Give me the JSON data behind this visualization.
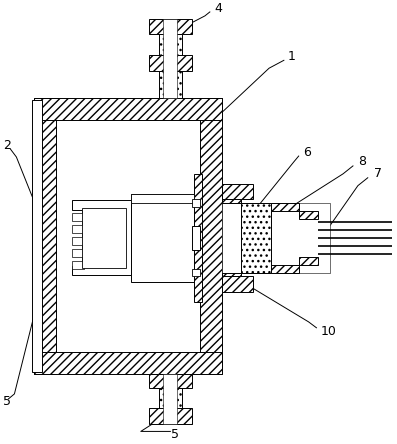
{
  "bg_color": "#ffffff",
  "figsize": [
    3.97,
    4.44
  ],
  "dpi": 100,
  "labels": [
    "1",
    "2",
    "4",
    "5",
    "5",
    "6",
    "7",
    "8",
    "10"
  ]
}
